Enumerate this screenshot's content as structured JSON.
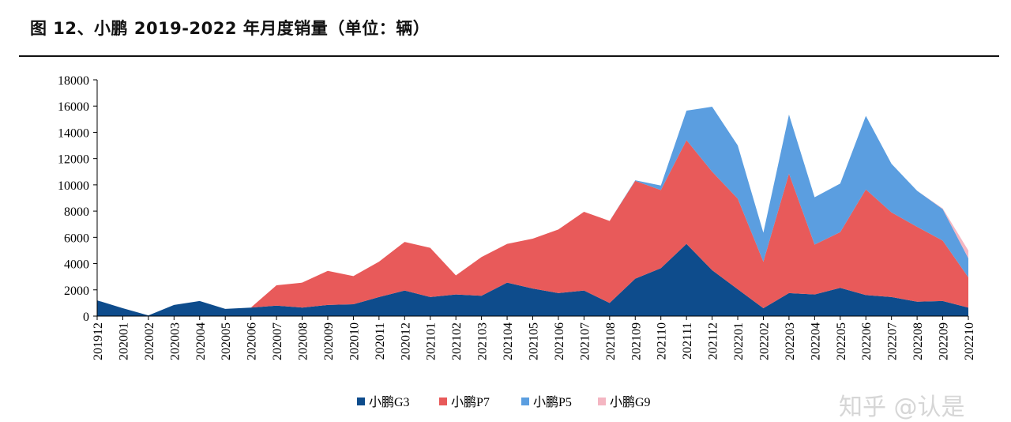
{
  "title": "图 12、小鹏 2019-2022 年月度销量（单位：辆）",
  "watermark": "知乎 @认是",
  "chart_data": {
    "type": "area",
    "stacked": true,
    "title": "图 12、小鹏 2019-2022 年月度销量（单位：辆）",
    "xlabel": "",
    "ylabel": "",
    "ylim": [
      0,
      18000
    ],
    "yticks": [
      0,
      2000,
      4000,
      6000,
      8000,
      10000,
      12000,
      14000,
      16000,
      18000
    ],
    "categories": [
      "201912",
      "202001",
      "202002",
      "202003",
      "202004",
      "202005",
      "202006",
      "202007",
      "202008",
      "202009",
      "202010",
      "202011",
      "202012",
      "202101",
      "202102",
      "202103",
      "202104",
      "202105",
      "202106",
      "202107",
      "202108",
      "202109",
      "202110",
      "202111",
      "202112",
      "202201",
      "202202",
      "202203",
      "202204",
      "202205",
      "202206",
      "202207",
      "202208",
      "202209",
      "202210"
    ],
    "series": [
      {
        "name": "小鹏G3",
        "color": "#0E4C8C",
        "values": [
          1200,
          600,
          50,
          850,
          1150,
          550,
          650,
          800,
          650,
          850,
          900,
          1450,
          1950,
          1450,
          1650,
          1550,
          2550,
          2100,
          1750,
          1950,
          1000,
          2850,
          3650,
          5500,
          3500,
          2050,
          600,
          1750,
          1650,
          2150,
          1600,
          1450,
          1100,
          1150,
          650
        ]
      },
      {
        "name": "小鹏P7",
        "color": "#E85A5A",
        "values": [
          0,
          0,
          0,
          0,
          0,
          0,
          0,
          1550,
          1900,
          2600,
          2150,
          2700,
          3700,
          3750,
          1450,
          2950,
          2950,
          3800,
          4850,
          6000,
          6250,
          7450,
          5950,
          7900,
          7500,
          6900,
          3550,
          9100,
          3800,
          4250,
          8050,
          6450,
          5700,
          4600,
          2300
        ]
      },
      {
        "name": "小鹏P5",
        "color": "#5B9EE0",
        "values": [
          0,
          0,
          0,
          0,
          0,
          0,
          0,
          0,
          0,
          0,
          0,
          0,
          0,
          0,
          0,
          0,
          0,
          0,
          0,
          0,
          0,
          50,
          350,
          2250,
          4950,
          4050,
          2200,
          4500,
          3600,
          3700,
          5600,
          3700,
          2750,
          2400,
          1450
        ]
      },
      {
        "name": "小鹏G9",
        "color": "#F4B6C2",
        "values": [
          0,
          0,
          0,
          0,
          0,
          0,
          0,
          0,
          0,
          0,
          0,
          0,
          0,
          0,
          0,
          0,
          0,
          0,
          0,
          0,
          0,
          0,
          0,
          0,
          0,
          0,
          0,
          0,
          0,
          0,
          0,
          0,
          0,
          50,
          600
        ]
      }
    ],
    "legend": "bottom-center"
  }
}
